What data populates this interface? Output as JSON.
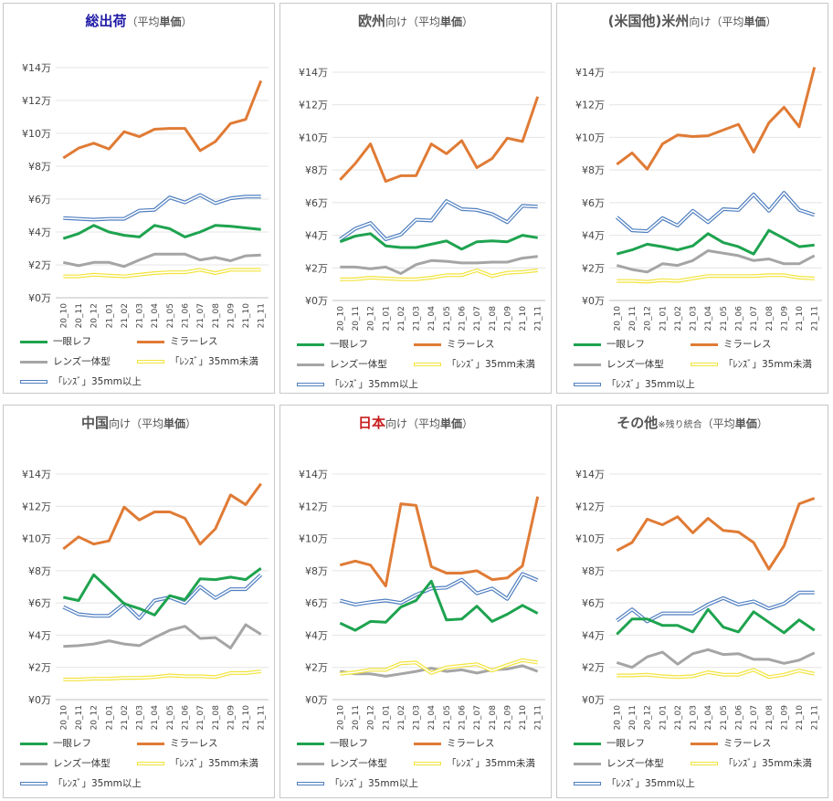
{
  "categories": [
    "20_10",
    "20_11",
    "20_12",
    "21_01",
    "21_02",
    "21_03",
    "21_04",
    "21_05",
    "21_06",
    "21_07",
    "21_08",
    "21_09",
    "21_10",
    "21_11"
  ],
  "y_ticks": [
    "¥0万",
    "¥2万",
    "¥4万",
    "¥6万",
    "¥8万",
    "¥10万",
    "¥12万",
    "¥14万"
  ],
  "series_meta": [
    {
      "key": "slr",
      "name": "一眼レフ",
      "color": "#1ea34f",
      "style": "solid"
    },
    {
      "key": "ml",
      "name": "ミラーレス",
      "color": "#e07b35",
      "style": "solid"
    },
    {
      "key": "int",
      "name": "レンズ一体型",
      "color": "#a5a5a5",
      "style": "solid"
    },
    {
      "key": "lt35",
      "name": "「ﾚﾝｽﾞ」35mm未満",
      "color": "#f2e33b",
      "style": "double"
    },
    {
      "key": "ge35",
      "name": "「ﾚﾝｽﾞ」35mm以上",
      "color": "#4f7fc0",
      "style": "double"
    }
  ],
  "chart_data": [
    {
      "type": "line",
      "title": {
        "main": "総出荷",
        "main_color": "#1f1aa6",
        "sub_pre": "（平均",
        "sub_bold": "単価",
        "sub_post": "）",
        "note": ""
      },
      "ylim": [
        0,
        14
      ],
      "series": [
        {
          "name": "一眼レフ",
          "values": [
            3.6,
            3.9,
            4.4,
            4.0,
            3.8,
            3.7,
            4.4,
            4.2,
            3.7,
            4.0,
            4.4,
            4.35,
            4.25,
            4.15
          ]
        },
        {
          "name": "ミラーレス",
          "values": [
            8.5,
            9.1,
            9.4,
            9.05,
            10.1,
            9.8,
            10.25,
            10.3,
            10.3,
            8.95,
            9.5,
            10.6,
            10.85,
            13.2
          ]
        },
        {
          "name": "レンズ一体型",
          "values": [
            2.15,
            1.95,
            2.15,
            2.15,
            1.9,
            2.3,
            2.65,
            2.65,
            2.65,
            2.3,
            2.45,
            2.25,
            2.55,
            2.6
          ]
        },
        {
          "name": "「ﾚﾝｽﾞ」35mm未満",
          "values": [
            1.3,
            1.3,
            1.4,
            1.35,
            1.3,
            1.4,
            1.5,
            1.55,
            1.55,
            1.7,
            1.5,
            1.7,
            1.7,
            1.7
          ]
        },
        {
          "name": "「ﾚﾝｽﾞ」35mm以上",
          "values": [
            4.85,
            4.8,
            4.75,
            4.8,
            4.8,
            5.3,
            5.35,
            6.1,
            5.8,
            6.25,
            5.75,
            6.05,
            6.15,
            6.15
          ]
        }
      ]
    },
    {
      "type": "line",
      "title": {
        "main": "欧州",
        "main_color": "#555555",
        "sub_pre": "向け（平均",
        "sub_bold": "単価",
        "sub_post": "）",
        "note": ""
      },
      "ylim": [
        0,
        14
      ],
      "series": [
        {
          "name": "一眼レフ",
          "values": [
            3.6,
            3.95,
            4.1,
            3.35,
            3.25,
            3.25,
            3.45,
            3.65,
            3.15,
            3.6,
            3.65,
            3.6,
            4.0,
            3.85
          ]
        },
        {
          "name": "ミラーレス",
          "values": [
            7.4,
            8.4,
            9.6,
            7.3,
            7.65,
            7.65,
            9.6,
            9.0,
            9.8,
            8.15,
            8.7,
            9.95,
            9.75,
            12.5
          ]
        },
        {
          "name": "レンズ一体型",
          "values": [
            2.05,
            2.05,
            1.95,
            2.05,
            1.65,
            2.2,
            2.45,
            2.4,
            2.3,
            2.3,
            2.35,
            2.35,
            2.6,
            2.7
          ]
        },
        {
          "name": "「ﾚﾝｽﾞ」35mm未満",
          "values": [
            1.3,
            1.3,
            1.4,
            1.35,
            1.3,
            1.3,
            1.4,
            1.55,
            1.55,
            1.85,
            1.5,
            1.7,
            1.75,
            1.85
          ]
        },
        {
          "name": "「ﾚﾝｽﾞ」35mm以上",
          "values": [
            3.75,
            4.4,
            4.75,
            3.75,
            4.05,
            4.95,
            4.9,
            6.1,
            5.6,
            5.55,
            5.3,
            4.8,
            5.8,
            5.75
          ]
        }
      ]
    },
    {
      "type": "line",
      "title": {
        "main": "(米国他)米州",
        "main_color": "#555555",
        "sub_pre": "向け（平均",
        "sub_bold": "単価",
        "sub_post": "）",
        "note": ""
      },
      "ylim": [
        0,
        14
      ],
      "series": [
        {
          "name": "一眼レフ",
          "values": [
            2.85,
            3.1,
            3.45,
            3.3,
            3.1,
            3.35,
            4.1,
            3.55,
            3.3,
            2.85,
            4.3,
            3.8,
            3.3,
            3.4
          ]
        },
        {
          "name": "ミラーレス",
          "values": [
            8.35,
            9.05,
            8.05,
            9.6,
            10.15,
            10.05,
            10.1,
            10.45,
            10.8,
            9.1,
            10.9,
            11.85,
            10.65,
            14.3
          ]
        },
        {
          "name": "レンズ一体型",
          "values": [
            2.15,
            1.9,
            1.75,
            2.25,
            2.15,
            2.45,
            3.05,
            2.9,
            2.75,
            2.45,
            2.55,
            2.25,
            2.25,
            2.75
          ]
        },
        {
          "name": "「ﾚﾝｽﾞ」35mm未満",
          "values": [
            1.2,
            1.2,
            1.15,
            1.25,
            1.2,
            1.35,
            1.5,
            1.5,
            1.5,
            1.5,
            1.55,
            1.55,
            1.4,
            1.35
          ]
        },
        {
          "name": "「ﾚﾝｽﾞ」35mm以上",
          "values": [
            5.1,
            4.3,
            4.25,
            5.05,
            4.6,
            5.5,
            4.8,
            5.6,
            5.55,
            6.5,
            5.5,
            6.6,
            5.55,
            5.25
          ]
        }
      ]
    },
    {
      "type": "line",
      "title": {
        "main": "中国",
        "main_color": "#555555",
        "sub_pre": "向け（平均",
        "sub_bold": "単価",
        "sub_post": "）",
        "note": ""
      },
      "ylim": [
        0,
        14
      ],
      "series": [
        {
          "name": "一眼レフ",
          "values": [
            6.35,
            6.15,
            7.75,
            6.85,
            5.95,
            5.65,
            5.25,
            6.45,
            6.2,
            7.5,
            7.45,
            7.6,
            7.45,
            8.15
          ]
        },
        {
          "name": "ミラーレス",
          "values": [
            9.35,
            10.1,
            9.65,
            9.85,
            11.95,
            11.15,
            11.65,
            11.65,
            11.25,
            9.65,
            10.6,
            12.7,
            12.1,
            13.4
          ]
        },
        {
          "name": "レンズ一体型",
          "values": [
            3.3,
            3.35,
            3.45,
            3.65,
            3.45,
            3.35,
            3.85,
            4.3,
            4.55,
            3.8,
            3.85,
            3.2,
            4.65,
            4.05
          ]
        },
        {
          "name": "「ﾚﾝｽﾞ」35mm未満",
          "values": [
            1.25,
            1.25,
            1.3,
            1.3,
            1.35,
            1.35,
            1.4,
            1.5,
            1.45,
            1.45,
            1.4,
            1.65,
            1.65,
            1.75
          ]
        },
        {
          "name": "「ﾚﾝｽﾞ」35mm以上",
          "values": [
            5.75,
            5.3,
            5.2,
            5.2,
            5.95,
            5.05,
            6.15,
            6.35,
            6.0,
            7.0,
            6.3,
            6.85,
            6.85,
            7.75
          ]
        }
      ]
    },
    {
      "type": "line",
      "title": {
        "main": "日本",
        "main_color": "#c81e1e",
        "sub_pre": "向け（平均",
        "sub_bold": "単価",
        "sub_post": "）",
        "note": ""
      },
      "ylim": [
        0,
        14
      ],
      "series": [
        {
          "name": "一眼レフ",
          "values": [
            4.75,
            4.3,
            4.85,
            4.8,
            5.75,
            6.15,
            7.35,
            4.95,
            5.0,
            5.8,
            4.85,
            5.3,
            5.85,
            5.35
          ]
        },
        {
          "name": "ミラーレス",
          "values": [
            8.35,
            8.6,
            8.35,
            7.05,
            12.15,
            12.05,
            8.25,
            7.85,
            7.85,
            8.0,
            7.45,
            7.55,
            8.3,
            12.6
          ]
        },
        {
          "name": "レンズ一体型",
          "values": [
            1.75,
            1.6,
            1.6,
            1.45,
            1.6,
            1.75,
            1.95,
            1.75,
            1.85,
            1.65,
            1.85,
            1.9,
            2.1,
            1.75
          ]
        },
        {
          "name": "「ﾚﾝｽﾞ」35mm未満",
          "values": [
            1.6,
            1.7,
            1.85,
            1.85,
            2.25,
            2.3,
            1.65,
            2.0,
            2.1,
            2.2,
            1.8,
            2.15,
            2.45,
            2.3
          ]
        },
        {
          "name": "「ﾚﾝｽﾞ」35mm以上",
          "values": [
            6.15,
            5.9,
            6.05,
            6.15,
            6.0,
            6.5,
            6.9,
            6.95,
            7.45,
            6.6,
            6.9,
            6.25,
            7.8,
            7.4
          ]
        }
      ]
    },
    {
      "type": "line",
      "title": {
        "main": "その他",
        "main_color": "#555555",
        "sub_pre": "（平均",
        "sub_bold": "単価",
        "sub_post": "）",
        "note": "※残り統合"
      },
      "ylim": [
        0,
        14
      ],
      "series": [
        {
          "name": "一眼レフ",
          "values": [
            4.05,
            5.0,
            5.0,
            4.6,
            4.6,
            4.2,
            5.6,
            4.5,
            4.2,
            5.45,
            4.8,
            4.15,
            4.95,
            4.3
          ]
        },
        {
          "name": "ミラーレス",
          "values": [
            9.25,
            9.75,
            11.2,
            10.85,
            11.35,
            10.35,
            11.25,
            10.5,
            10.4,
            9.75,
            8.1,
            9.55,
            12.15,
            12.5
          ]
        },
        {
          "name": "レンズ一体型",
          "values": [
            2.3,
            2.0,
            2.65,
            2.95,
            2.2,
            2.85,
            3.1,
            2.8,
            2.85,
            2.5,
            2.5,
            2.25,
            2.45,
            2.9
          ]
        },
        {
          "name": "「ﾚﾝｽﾞ」35mm未満",
          "values": [
            1.5,
            1.5,
            1.55,
            1.45,
            1.4,
            1.45,
            1.7,
            1.55,
            1.55,
            1.85,
            1.4,
            1.55,
            1.8,
            1.6
          ]
        },
        {
          "name": "「ﾚﾝｽﾞ」35mm以上",
          "values": [
            4.9,
            5.6,
            4.85,
            5.35,
            5.35,
            5.35,
            5.9,
            6.3,
            5.9,
            6.1,
            5.65,
            5.95,
            6.65,
            6.65
          ]
        }
      ]
    }
  ]
}
